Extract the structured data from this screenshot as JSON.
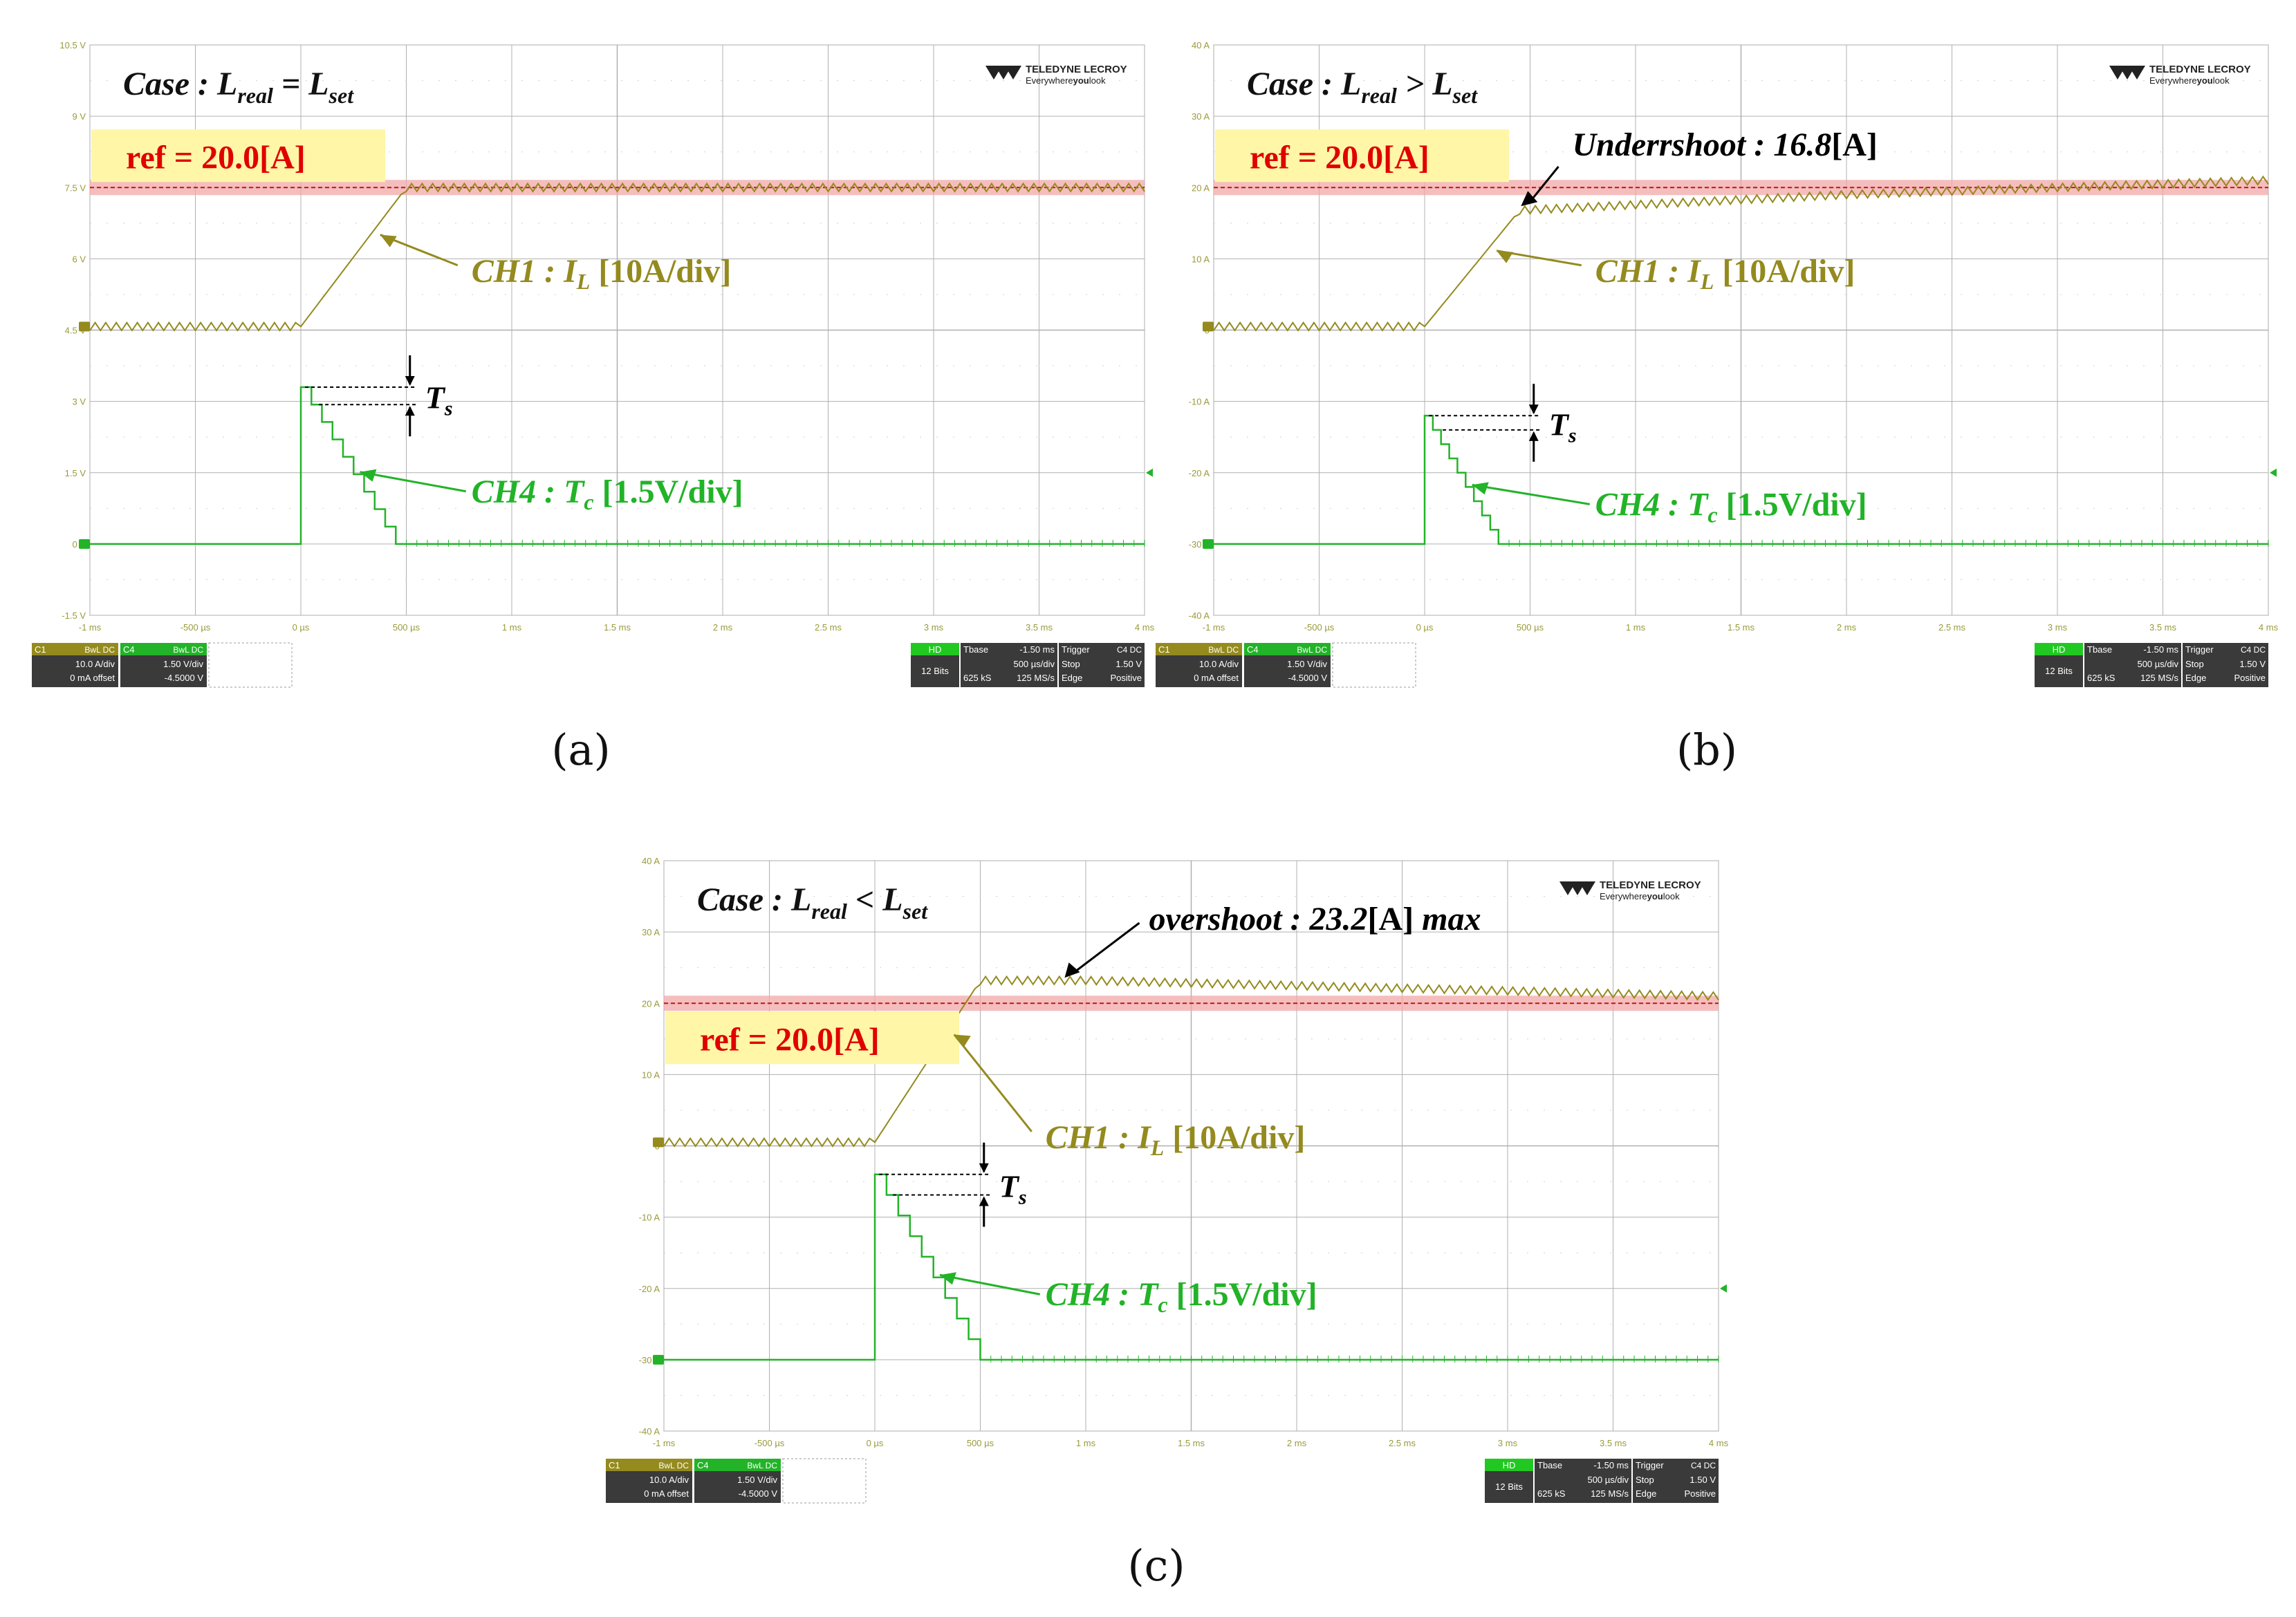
{
  "colors": {
    "ch1": "#948a1e",
    "ch4": "#22b328",
    "ref_band": "#f2a8a8",
    "ref_line": "#c81010",
    "ref_label_bg": "#fff6a8",
    "ref_label_text": "#e00000",
    "grid": "#b0b0b0",
    "axis_text": "#9a9a3a"
  },
  "brand": {
    "name": "TELEDYNE LECROY",
    "tagline_pre": "Everywhere",
    "tagline_bold": "you",
    "tagline_post": "look"
  },
  "status_bar": {
    "c1": {
      "label": "C1",
      "coupling": "BwL DC",
      "vdiv": "10.0 A/div",
      "offset": "0 mA offset"
    },
    "c4": {
      "label": "C4",
      "coupling": "BwL DC",
      "vdiv": "1.50 V/div",
      "offset": "-4.5000 V"
    },
    "hd": "HD",
    "bits": "12 Bits",
    "tbase_label": "Tbase",
    "tbase_val": "-1.50 ms",
    "tdiv": "500 µs/div",
    "samples": "625 kS",
    "rate": "125 MS/s",
    "trigger_label": "Trigger",
    "trigger_src": "C4 DC",
    "trigger_mode": "Stop",
    "trigger_level": "1.50 V",
    "trigger_type": "Edge",
    "trigger_slope": "Positive"
  },
  "x_ticks": [
    "-1 ms",
    "-500 µs",
    "0 µs",
    "500 µs",
    "1 ms",
    "1.5 ms",
    "2 ms",
    "2.5 ms",
    "3 ms",
    "3.5 ms",
    "4 ms"
  ],
  "panels": [
    {
      "id": "a",
      "panel_label": "(a)",
      "case_text": "Case : L",
      "case_sub1": "real",
      "case_rel": " = L",
      "case_sub2": "set",
      "y_ticks": [
        "10.5 V",
        "9 V",
        "7.5 V",
        "6 V",
        "4.5 V",
        "3 V",
        "1.5 V",
        "0 V",
        "-1.5 V"
      ],
      "ref_label": "ref = 20.0[A]",
      "ch1_label": "CH1 : I",
      "ch1_sub": "L",
      "ch1_rest": " [10A/div]",
      "ch4_label": "CH4 : T",
      "ch4_sub": "c",
      "ch4_rest": " [1.5V/div]",
      "ts_label": "T",
      "ts_sub": "s",
      "annot": null
    },
    {
      "id": "b",
      "panel_label": "(b)",
      "case_text": "Case : L",
      "case_sub1": "real",
      "case_rel": " > L",
      "case_sub2": "set",
      "y_ticks": [
        "40 A",
        "30 A",
        "20 A",
        "10 A",
        "0",
        "-10 A",
        "-20 A",
        "-30 A",
        "-40 A"
      ],
      "ref_label": "ref = 20.0[A]",
      "ch1_label": "CH1 : I",
      "ch1_sub": "L",
      "ch1_rest": " [10A/div]",
      "ch4_label": "CH4 : T",
      "ch4_sub": "c",
      "ch4_rest": " [1.5V/div]",
      "ts_label": "T",
      "ts_sub": "s",
      "annot": {
        "italic": "Underrshoot : 16.8",
        "rest": "[A]",
        "tail": ""
      }
    },
    {
      "id": "c",
      "panel_label": "(c)",
      "case_text": "Case : L",
      "case_sub1": "real",
      "case_rel": " < L",
      "case_sub2": "set",
      "y_ticks": [
        "40 A",
        "30 A",
        "20 A",
        "10 A",
        "0",
        "-10 A",
        "-20 A",
        "-30 A",
        "-40 A"
      ],
      "ref_label": "ref = 20.0[A]",
      "ch1_label": "CH1 : I",
      "ch1_sub": "L",
      "ch1_rest": " [10A/div]",
      "ch4_label": "CH4 : T",
      "ch4_sub": "c",
      "ch4_rest": " [1.5V/div]",
      "ts_label": "T",
      "ts_sub": "s",
      "annot": {
        "italic": "overshoot : 23.2",
        "rest": "[A]",
        "tail": " max"
      }
    }
  ],
  "chart_data": [
    {
      "type": "line",
      "panel": "a",
      "x_unit": "ms",
      "xlim": [
        -1,
        4
      ],
      "series": [
        {
          "name": "CH1 : IL [10A/div]",
          "unit": "A",
          "points": [
            [
              -1,
              0.5
            ],
            [
              0,
              0.5
            ],
            [
              0.5,
              20.0
            ],
            [
              4,
              20.0
            ]
          ],
          "ripple": 1.0
        },
        {
          "name": "CH4 : Tc [1.5V/div]",
          "unit": "V",
          "points": [
            [
              -1,
              0
            ],
            [
              0,
              0
            ],
            [
              0,
              3.3
            ],
            [
              0.45,
              0
            ],
            [
              4,
              0
            ]
          ]
        }
      ],
      "reference": 20.0
    },
    {
      "type": "line",
      "panel": "b",
      "x_unit": "ms",
      "xlim": [
        -1,
        4
      ],
      "series": [
        {
          "name": "CH1 : IL [10A/div]",
          "unit": "A",
          "points": [
            [
              -1,
              0.5
            ],
            [
              0,
              0.5
            ],
            [
              0.45,
              16.8
            ],
            [
              2,
              19.0
            ],
            [
              4,
              21.0
            ]
          ],
          "ripple": 1.0
        },
        {
          "name": "CH4 : Tc [1.5V/div]",
          "unit": "A-scale",
          "points": [
            [
              -1,
              -30
            ],
            [
              0,
              -30
            ],
            [
              0,
              -12
            ],
            [
              0.35,
              -30
            ],
            [
              4,
              -30
            ]
          ]
        }
      ],
      "reference": 20.0
    },
    {
      "type": "line",
      "panel": "c",
      "x_unit": "ms",
      "xlim": [
        -1,
        4
      ],
      "series": [
        {
          "name": "CH1 : IL [10A/div]",
          "unit": "A",
          "points": [
            [
              -1,
              0.5
            ],
            [
              0,
              0.5
            ],
            [
              0.5,
              23.2
            ],
            [
              1,
              23.2
            ],
            [
              4,
              21.0
            ]
          ],
          "ripple": 1.0
        },
        {
          "name": "CH4 : Tc [1.5V/div]",
          "unit": "A-scale",
          "points": [
            [
              -1,
              -30
            ],
            [
              0,
              -30
            ],
            [
              0,
              -4
            ],
            [
              0.5,
              -30
            ],
            [
              4,
              -30
            ]
          ]
        }
      ],
      "reference": 20.0
    }
  ]
}
